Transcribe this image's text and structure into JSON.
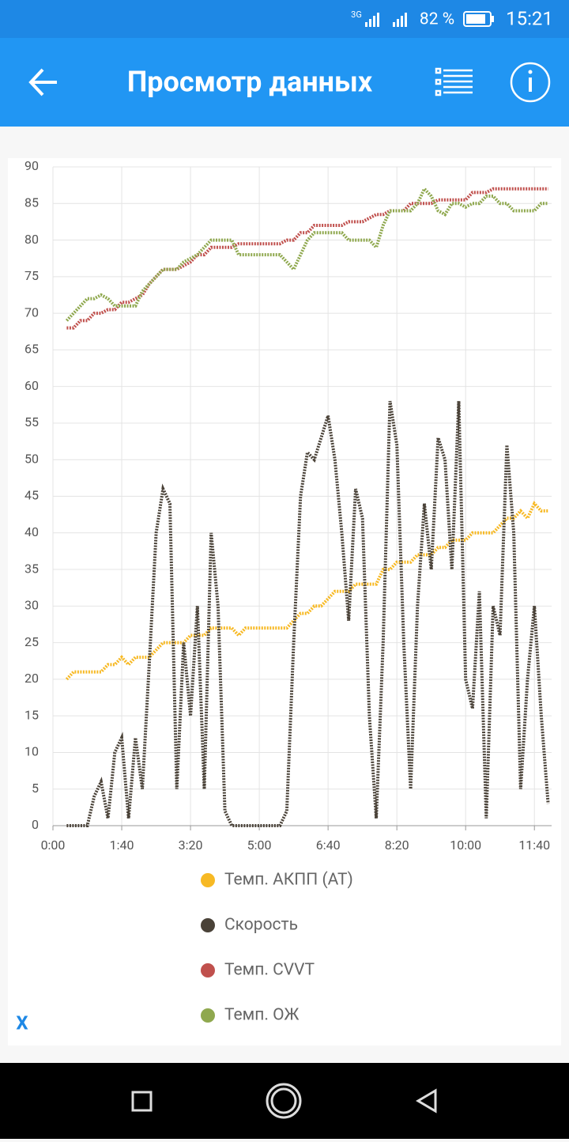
{
  "status": {
    "network": "3G",
    "battery": "82 %",
    "time": "15:21"
  },
  "appbar": {
    "title": "Просмотр данных"
  },
  "close": "X",
  "chart_data": {
    "type": "line",
    "x": [
      20,
      30,
      40,
      50,
      60,
      70,
      80,
      90,
      100,
      110,
      120,
      130,
      140,
      150,
      160,
      170,
      180,
      190,
      200,
      210,
      220,
      230,
      240,
      250,
      260,
      270,
      280,
      290,
      300,
      310,
      320,
      330,
      340,
      350,
      360,
      370,
      380,
      390,
      400,
      410,
      420,
      430,
      440,
      450,
      460,
      470,
      480,
      490,
      500,
      510,
      520,
      530,
      540,
      550,
      560,
      570,
      580,
      590,
      600,
      610,
      620,
      630,
      640,
      650,
      660,
      670,
      680,
      690,
      700,
      710,
      720
    ],
    "series": [
      {
        "name": "Темп. АКПП (AT)",
        "color": "#f7b924",
        "values": [
          20,
          21,
          21,
          21,
          21,
          21,
          22,
          22,
          23,
          22,
          23,
          23,
          23,
          24,
          25,
          25,
          25,
          25,
          26,
          26,
          26,
          27,
          27,
          27,
          27,
          26,
          27,
          27,
          27,
          27,
          27,
          27,
          27,
          28,
          29,
          29,
          30,
          30,
          31,
          32,
          32,
          32,
          33,
          33,
          33,
          33,
          35,
          35,
          36,
          36,
          36,
          37,
          37,
          37,
          38,
          38,
          39,
          39,
          39,
          40,
          40,
          40,
          40,
          41,
          42,
          42,
          43,
          42,
          44,
          43,
          43
        ]
      },
      {
        "name": "Скорость",
        "color": "#4a4238",
        "values": [
          0,
          0,
          0,
          0,
          4,
          6,
          1,
          10,
          12,
          1,
          12,
          5,
          22,
          40,
          46,
          44,
          5,
          25,
          15,
          30,
          5,
          40,
          30,
          2,
          0,
          0,
          0,
          0,
          0,
          0,
          0,
          0,
          2,
          25,
          45,
          51,
          50,
          53,
          56,
          50,
          40,
          28,
          46,
          42,
          15,
          1,
          25,
          58,
          52,
          25,
          5,
          30,
          44,
          35,
          53,
          50,
          35,
          58,
          20,
          16,
          32,
          1,
          30,
          26,
          52,
          40,
          5,
          20,
          30,
          15,
          3
        ]
      },
      {
        "name": "Темп. CVVT",
        "color": "#c0504d",
        "values": [
          68,
          68,
          69,
          69,
          70,
          70,
          70.5,
          70.5,
          71.5,
          71.5,
          72,
          72.5,
          74,
          75,
          76,
          76,
          76,
          76.5,
          77,
          78,
          78,
          79,
          79,
          79,
          79,
          79.5,
          79.5,
          79.5,
          79.5,
          79.5,
          79.5,
          79.5,
          80,
          80,
          81,
          81,
          82,
          82,
          82,
          82,
          82,
          82.5,
          82.5,
          82.5,
          83,
          83.5,
          83.5,
          84,
          84,
          84,
          85,
          85,
          85,
          85,
          85.5,
          85.5,
          85.5,
          85.5,
          85.5,
          86.5,
          86.5,
          86.5,
          87,
          87,
          87,
          87,
          87,
          87,
          87,
          87,
          87
        ]
      },
      {
        "name": "Темп. ОЖ",
        "color": "#8fa84e",
        "values": [
          69,
          70,
          71,
          72,
          72,
          72.5,
          72,
          71,
          71,
          71,
          71,
          73,
          74,
          75,
          76,
          76,
          76,
          77,
          77.5,
          78,
          79,
          80,
          80,
          80,
          80,
          78,
          78,
          78,
          78,
          78,
          78,
          78,
          77,
          76,
          78,
          80,
          81,
          81,
          81,
          81,
          81,
          80,
          80,
          80,
          80,
          79,
          82,
          84,
          84,
          84,
          84,
          85,
          87,
          86,
          84,
          83.5,
          85,
          85,
          84.5,
          85,
          85,
          86,
          86,
          85,
          85,
          84,
          84,
          84,
          84,
          85,
          85
        ]
      }
    ],
    "xlim": [
      0,
      725
    ],
    "xticks": [
      {
        "value": 0,
        "label": "0:00"
      },
      {
        "value": 100,
        "label": "1:40"
      },
      {
        "value": 200,
        "label": "3:20"
      },
      {
        "value": 300,
        "label": "5:00"
      },
      {
        "value": 400,
        "label": "6:40"
      },
      {
        "value": 500,
        "label": "8:20"
      },
      {
        "value": 600,
        "label": "10:00"
      },
      {
        "value": 700,
        "label": "11:40"
      }
    ],
    "ylim": [
      0,
      90
    ],
    "yticks": [
      0,
      5,
      10,
      15,
      20,
      25,
      30,
      35,
      40,
      45,
      50,
      55,
      60,
      65,
      70,
      75,
      80,
      85,
      90
    ],
    "grid": true,
    "legend": "bottom"
  }
}
